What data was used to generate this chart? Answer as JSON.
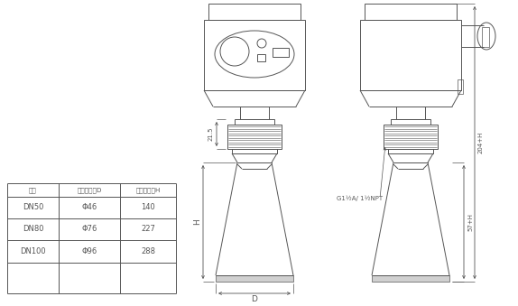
{
  "bg_color": "#ffffff",
  "line_color": "#555555",
  "table_headers": [
    "法兰",
    "喇叭口直径D",
    "喇叭口高度H"
  ],
  "table_rows": [
    [
      "DN50",
      "Φ46",
      "140"
    ],
    [
      "DN80",
      "Φ76",
      "227"
    ],
    [
      "DN100",
      "Φ96",
      "288"
    ]
  ],
  "dim_21_5": "21.5",
  "dim_H": "H",
  "dim_D": "D",
  "dim_204H": "204+H",
  "dim_57H": "57+H",
  "dim_thread": "G1½A/ 1½NPT",
  "lw": 0.7
}
